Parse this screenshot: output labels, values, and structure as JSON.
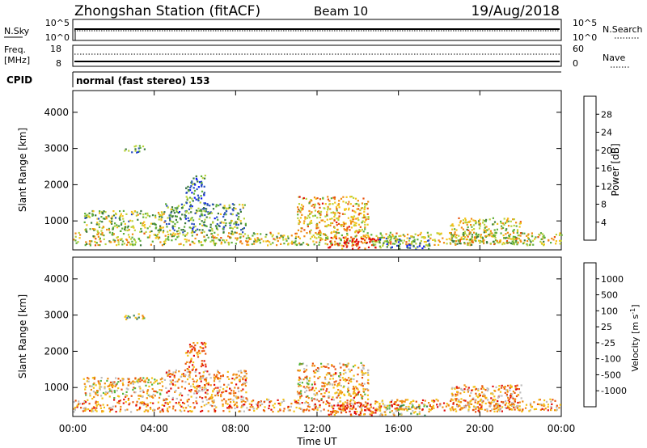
{
  "header": {
    "station": "Zhongshan Station (fitACF)",
    "beam": "Beam 10",
    "date": "19/Aug/2018"
  },
  "nsky_panel": {
    "left_label": "N.Sky",
    "left_ticks": [
      "10^5",
      "10^0"
    ],
    "right_label": "N.Search",
    "right_ticks": [
      "10^5",
      "10^0"
    ]
  },
  "freq_panel": {
    "left_label_1": "Freq.",
    "left_label_2": "[MHz]",
    "left_ticks": [
      "18",
      "8"
    ],
    "right_label": "Nave",
    "right_ticks": [
      "60",
      "0"
    ]
  },
  "cpid": {
    "label": "CPID",
    "value": "normal (fast stereo) 153"
  },
  "colors": {
    "power_scale": [
      "#0a1cf0",
      "#2a4fc0",
      "#3b7a3b",
      "#5fae3a",
      "#b9d33a",
      "#f3c318",
      "#f08a10",
      "#e8520c",
      "#e00a0a"
    ],
    "velocity_scale": [
      "#2a3fd0",
      "#3a68b8",
      "#3d7f58",
      "#57b43c",
      "#bdbdbd",
      "#f3c014",
      "#f08a10",
      "#e8520c",
      "#e00a0a"
    ]
  },
  "chart_data": [
    {
      "type": "heatmap",
      "name": "power",
      "ylabel": "Slant Range [km]",
      "yticks": [
        1000,
        2000,
        3000,
        4000
      ],
      "ylim": [
        200,
        4600
      ],
      "xlim": [
        0,
        24
      ],
      "colorbar": {
        "label": "Power [dB]",
        "range": [
          0,
          32
        ],
        "ticks": [
          "4",
          "8",
          "12",
          "16",
          "20",
          "24",
          "28"
        ],
        "tick_values": [
          4,
          8,
          12,
          16,
          20,
          24,
          28
        ]
      },
      "scatter_regions": [
        {
          "t0": 0.0,
          "t1": 24.0,
          "r0": 350,
          "r1": 700,
          "level": 0.55
        },
        {
          "t0": 0.5,
          "t1": 4.5,
          "r0": 700,
          "r1": 1300,
          "level": 0.45
        },
        {
          "t0": 4.5,
          "t1": 8.5,
          "r0": 700,
          "r1": 1500,
          "level": 0.35
        },
        {
          "t0": 5.5,
          "t1": 6.5,
          "r0": 1500,
          "r1": 2300,
          "level": 0.25
        },
        {
          "t0": 11.0,
          "t1": 14.5,
          "r0": 700,
          "r1": 1700,
          "level": 0.65
        },
        {
          "t0": 12.5,
          "t1": 15.0,
          "r0": 250,
          "r1": 600,
          "level": 0.9
        },
        {
          "t0": 15.0,
          "t1": 17.5,
          "r0": 250,
          "r1": 550,
          "level": 0.3
        },
        {
          "t0": 18.5,
          "t1": 22.0,
          "r0": 400,
          "r1": 1100,
          "level": 0.55
        },
        {
          "t0": 2.5,
          "t1": 3.5,
          "r0": 2900,
          "r1": 3100,
          "level": 0.3
        }
      ]
    },
    {
      "type": "heatmap",
      "name": "velocity",
      "ylabel": "Slant Range [km]",
      "yticks": [
        1000,
        2000,
        3000,
        4000
      ],
      "ylim": [
        200,
        4600
      ],
      "xlim": [
        0,
        24
      ],
      "xlabel": "Time UT",
      "xticks": [
        "00:00",
        "04:00",
        "08:00",
        "12:00",
        "16:00",
        "20:00",
        "00:00"
      ],
      "xtick_values": [
        0,
        4,
        8,
        12,
        16,
        20,
        24
      ],
      "colorbar": {
        "label": "Velocity [m s",
        "label_sup": "-1",
        "label_end": "]",
        "ticks": [
          "-1000",
          "-500",
          "-100",
          "-25",
          "25",
          "100",
          "500",
          "1000"
        ]
      },
      "scatter_regions": [
        {
          "t0": 0.0,
          "t1": 24.0,
          "r0": 350,
          "r1": 700,
          "level": 0.72
        },
        {
          "t0": 0.5,
          "t1": 4.5,
          "r0": 700,
          "r1": 1300,
          "level": 0.6
        },
        {
          "t0": 4.5,
          "t1": 8.5,
          "r0": 700,
          "r1": 1500,
          "level": 0.7
        },
        {
          "t0": 5.5,
          "t1": 6.5,
          "r0": 1500,
          "r1": 2300,
          "level": 0.8
        },
        {
          "t0": 11.0,
          "t1": 14.5,
          "r0": 700,
          "r1": 1700,
          "level": 0.65
        },
        {
          "t0": 12.5,
          "t1": 15.0,
          "r0": 250,
          "r1": 600,
          "level": 0.85
        },
        {
          "t0": 15.0,
          "t1": 17.5,
          "r0": 250,
          "r1": 550,
          "level": 0.5
        },
        {
          "t0": 18.5,
          "t1": 22.0,
          "r0": 400,
          "r1": 1100,
          "level": 0.7
        },
        {
          "t0": 2.5,
          "t1": 3.5,
          "r0": 2900,
          "r1": 3100,
          "level": 0.45
        }
      ]
    }
  ]
}
